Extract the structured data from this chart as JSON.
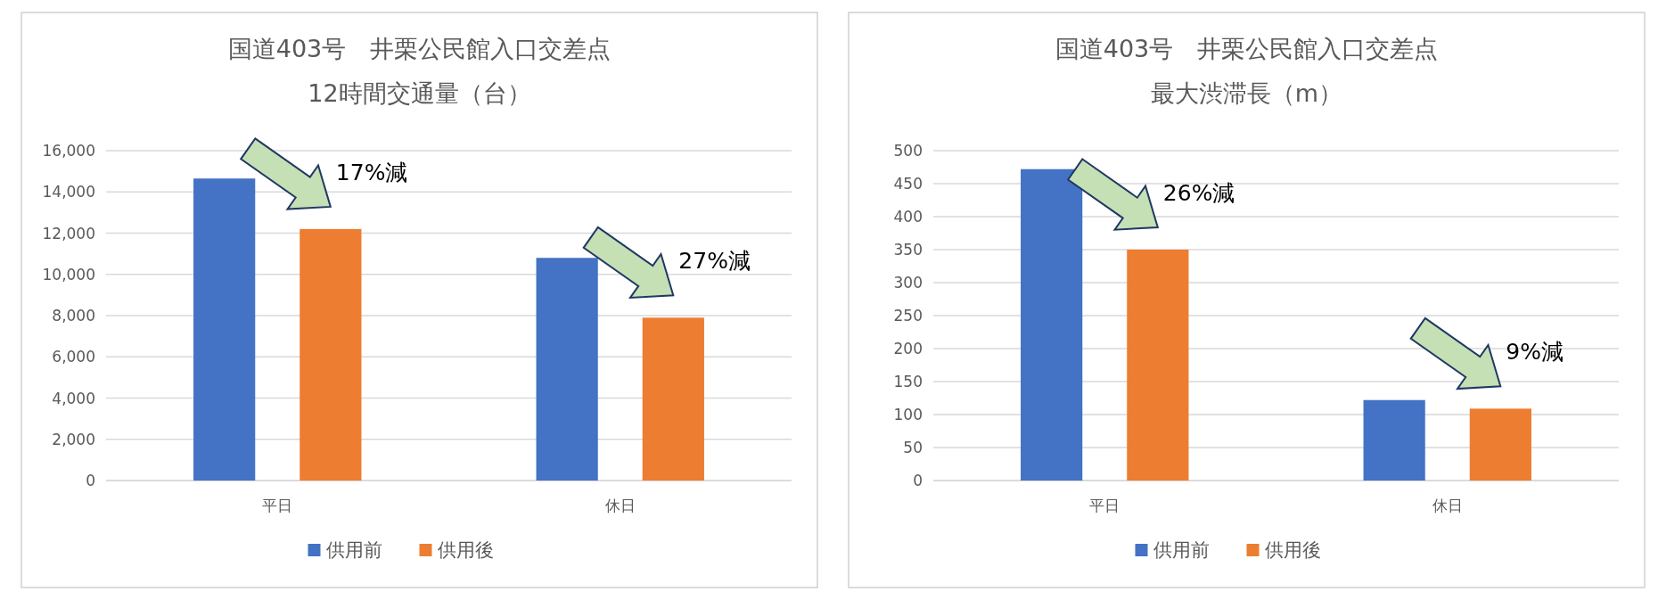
{
  "chart_data": [
    {
      "type": "bar",
      "title": "国道403号　井栗公民館入口交差点",
      "subtitle": "12時間交通量（台）",
      "categories": [
        "平日",
        "休日"
      ],
      "series": [
        {
          "name": "供用前",
          "color": "#4472c4",
          "values": [
            14650,
            10800
          ]
        },
        {
          "name": "供用後",
          "color": "#ed7d31",
          "values": [
            12200,
            7900
          ]
        }
      ],
      "ylim": [
        0,
        16000
      ],
      "yticks": [
        0,
        {
          "value": 2000,
          "label": "2,000"
        },
        {
          "value": 4000,
          "label": "4,000"
        },
        {
          "value": 6000,
          "label": "6,000"
        },
        {
          "value": 8000,
          "label": "8,000"
        },
        {
          "value": 10000,
          "label": "10,000"
        },
        {
          "value": 12000,
          "label": "12,000"
        },
        {
          "value": 14000,
          "label": "14,000"
        },
        {
          "value": 16000,
          "label": "16,000"
        }
      ],
      "grid": "y",
      "legend": "bottom",
      "annotations": [
        "17%減",
        "27%減"
      ]
    },
    {
      "type": "bar",
      "title": "国道403号　井栗公民館入口交差点",
      "subtitle": "最大渋滞長（m）",
      "categories": [
        "平日",
        "休日"
      ],
      "series": [
        {
          "name": "供用前",
          "color": "#4472c4",
          "values": [
            472,
            122
          ]
        },
        {
          "name": "供用後",
          "color": "#ed7d31",
          "values": [
            350,
            109
          ]
        }
      ],
      "ylim": [
        0,
        500
      ],
      "yticks": [
        0,
        50,
        100,
        150,
        200,
        250,
        300,
        350,
        400,
        450,
        500
      ],
      "grid": "y",
      "legend": "bottom",
      "annotations": [
        "26%減",
        "9%減"
      ]
    }
  ]
}
